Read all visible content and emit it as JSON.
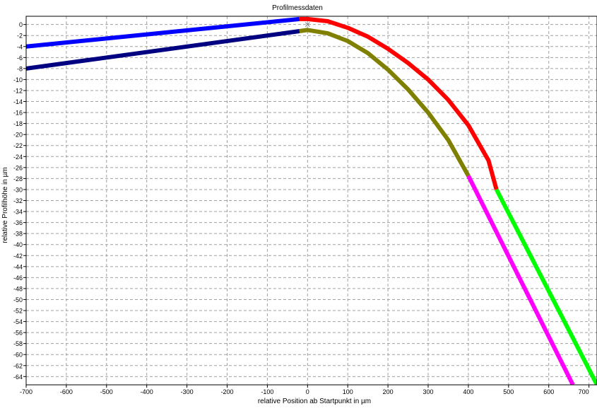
{
  "chart_data": {
    "type": "scatter",
    "title": "Profilmessdaten",
    "xlabel": "relative Position ab Startpunkt in µm",
    "ylabel": "relative Profilhöhe in µm",
    "xlim": [
      -700,
      720
    ],
    "ylim": [
      -65.5,
      1.5
    ],
    "xticks": [
      -700,
      -600,
      -500,
      -400,
      -300,
      -200,
      -100,
      0,
      100,
      200,
      300,
      400,
      500,
      600,
      700
    ],
    "yticks": [
      0,
      -2,
      -4,
      -6,
      -8,
      -10,
      -12,
      -14,
      -16,
      -18,
      -20,
      -22,
      -24,
      -26,
      -28,
      -30,
      -32,
      -34,
      -36,
      -38,
      -40,
      -42,
      -44,
      -46,
      -48,
      -50,
      -52,
      -54,
      -56,
      -58,
      -60,
      -62,
      -64,
      -66
    ],
    "grid": true,
    "legend": "none",
    "series": [
      {
        "color": "#0000ff",
        "points": [
          [
            -700,
            -4.0
          ],
          [
            -20,
            1.0
          ]
        ]
      },
      {
        "color": "#ff0000",
        "points": [
          [
            -20,
            1.0
          ],
          [
            0,
            1.0
          ],
          [
            50,
            0.6
          ],
          [
            100,
            -0.6
          ],
          [
            150,
            -2.2
          ],
          [
            200,
            -4.4
          ],
          [
            250,
            -7.0
          ],
          [
            300,
            -10.0
          ],
          [
            350,
            -13.7
          ],
          [
            400,
            -18.3
          ],
          [
            450,
            -24.7
          ],
          [
            470,
            -30.0
          ]
        ]
      },
      {
        "color": "#00ff00",
        "points": [
          [
            470,
            -30.0
          ],
          [
            720,
            -65.5
          ]
        ]
      },
      {
        "color": "#000080",
        "points": [
          [
            -700,
            -8.0
          ],
          [
            -20,
            -1.2
          ]
        ]
      },
      {
        "color": "#808000",
        "points": [
          [
            -20,
            -1.2
          ],
          [
            0,
            -1.0
          ],
          [
            50,
            -1.6
          ],
          [
            100,
            -3.0
          ],
          [
            150,
            -5.2
          ],
          [
            200,
            -8.2
          ],
          [
            250,
            -11.8
          ],
          [
            300,
            -16.0
          ],
          [
            350,
            -21.0
          ],
          [
            400,
            -27.5
          ]
        ]
      },
      {
        "color": "#ff00ff",
        "points": [
          [
            400,
            -27.5
          ],
          [
            660,
            -65.5
          ]
        ]
      }
    ],
    "markers": [
      {
        "color": "#808080",
        "x": 0,
        "y": 0
      }
    ]
  }
}
